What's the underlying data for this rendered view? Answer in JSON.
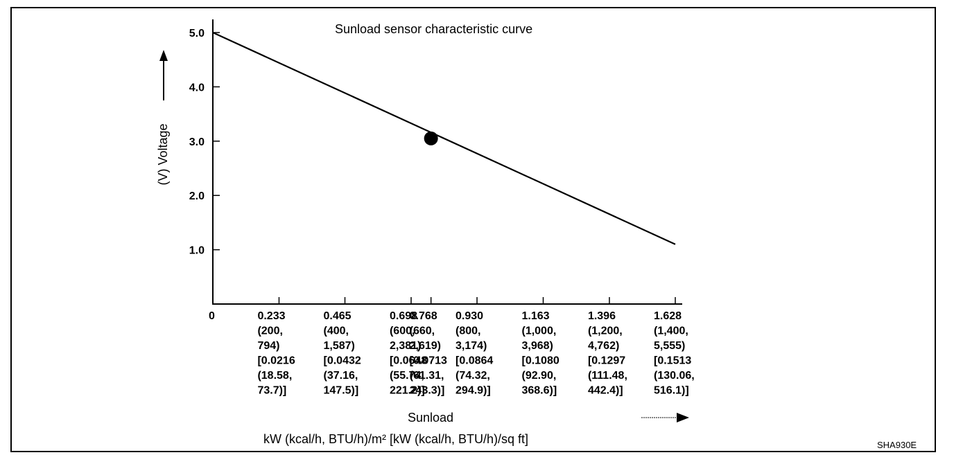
{
  "chart_data": {
    "type": "line",
    "title": "Sunload sensor characteristic curve",
    "xlabel": "Sunload",
    "x_units": "kW (kcal/h, BTU/h)/m²  [kW (kcal/h, BTU/h)/sq ft]",
    "ylabel": "(V) Voltage",
    "xlim": [
      0,
      1.628
    ],
    "ylim": [
      0,
      5.0
    ],
    "y_ticks": [
      {
        "value": 1.0,
        "label": "1.0"
      },
      {
        "value": 2.0,
        "label": "2.0"
      },
      {
        "value": 3.0,
        "label": "3.0"
      },
      {
        "value": 4.0,
        "label": "4.0"
      },
      {
        "value": 5.0,
        "label": "5.0"
      }
    ],
    "x_ticks": [
      {
        "value": 0,
        "lines": [
          "0"
        ]
      },
      {
        "value": 0.233,
        "lines": [
          "0.233",
          "(200,",
          "794)",
          "[0.0216",
          "(18.58,",
          "73.7)]"
        ]
      },
      {
        "value": 0.465,
        "lines": [
          "0.465",
          "(400,",
          "1,587)",
          "[0.0432",
          "(37.16,",
          "147.5)]"
        ]
      },
      {
        "value": 0.698,
        "lines": [
          "0.698",
          "(600,",
          "2,381)",
          "[0.0648",
          "(55.74,",
          "221.2)]"
        ]
      },
      {
        "value": 0.768,
        "lines": [
          "0.768",
          "(660,",
          "2,619)",
          "[0.0713",
          "(61.31,",
          "243.3)]"
        ]
      },
      {
        "value": 0.93,
        "lines": [
          "0.930",
          "(800,",
          "3,174)",
          "[0.0864",
          "(74.32,",
          "294.9)]"
        ]
      },
      {
        "value": 1.163,
        "lines": [
          "1.163",
          "(1,000,",
          "3,968)",
          "[0.1080",
          "(92.90,",
          "368.6)]"
        ]
      },
      {
        "value": 1.396,
        "lines": [
          "1.396",
          "(1,200,",
          "4,762)",
          "[0.1297",
          "(111.48,",
          "442.4)]"
        ]
      },
      {
        "value": 1.628,
        "lines": [
          "1.628",
          "(1,400,",
          "5,555)",
          "[0.1513",
          "(130.06,",
          "516.1)]"
        ]
      }
    ],
    "series": [
      {
        "x": [
          0,
          1.628
        ],
        "y": [
          5.0,
          1.1
        ]
      }
    ],
    "highlight_point": {
      "x": 0.768,
      "y": 3.05
    },
    "grid": false
  },
  "figure_code": "SHA930E"
}
